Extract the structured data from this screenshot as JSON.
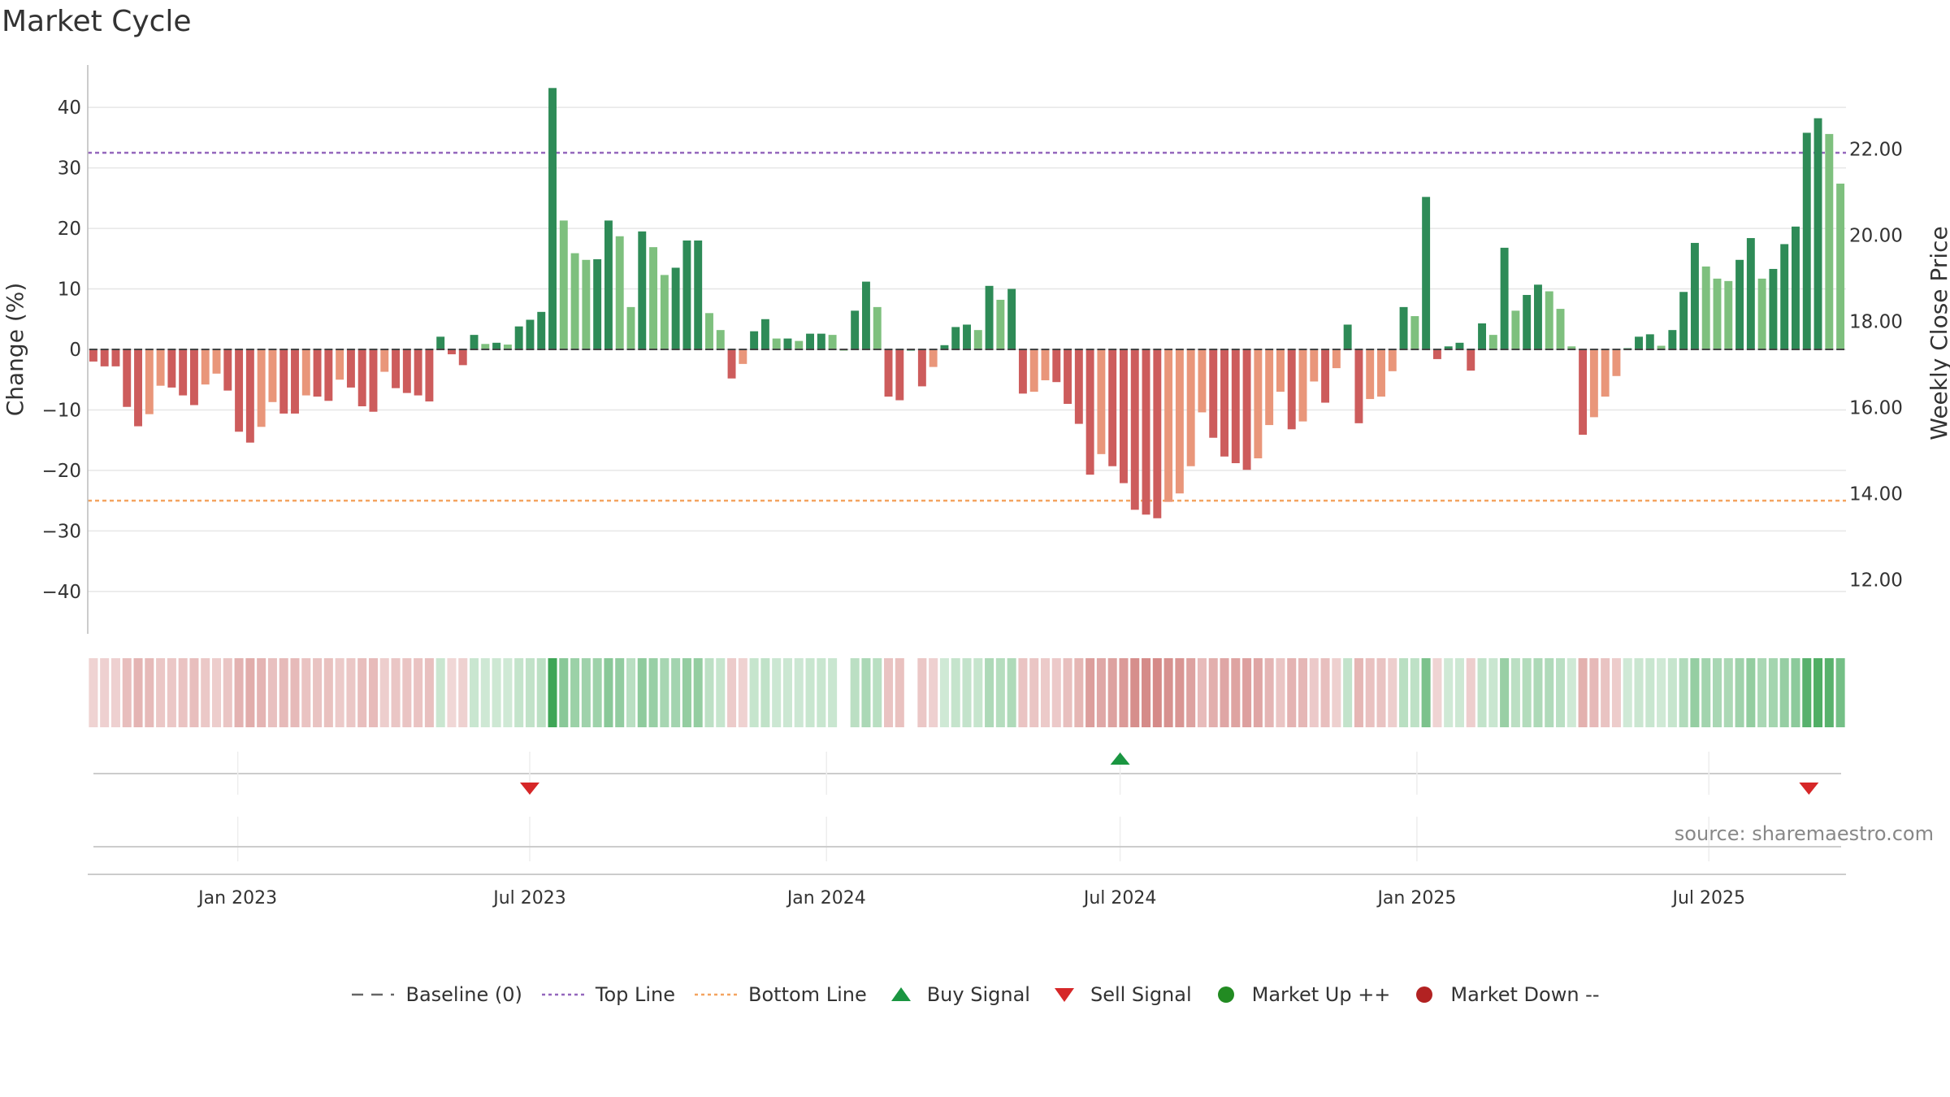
{
  "title": "Market Cycle",
  "source": "source: sharemaestro.com",
  "colors": {
    "up_strong": "#2e8b57",
    "up_light": "#7ec07e",
    "down_strong": "#cd5c5c",
    "down_light": "#e9967a",
    "top_line": "#9467bd",
    "bottom_line": "#f4a460",
    "buy": "#1a9641",
    "sell": "#d62728",
    "market_up": "#228b22",
    "market_down": "#b22222"
  },
  "legend": {
    "baseline": "Baseline (0)",
    "top_line": "Top Line",
    "bottom_line": "Bottom Line",
    "buy": "Buy Signal",
    "sell": "Sell Signal",
    "market_up": "Market Up ++",
    "market_down": "Market Down --"
  },
  "chart_data": {
    "type": "bar",
    "ylabel": "Change (%)",
    "y2label": "Weekly Close Price",
    "ylim": [
      -47,
      47
    ],
    "y2lim": [
      10.75,
      23.95
    ],
    "yticks": [
      -40,
      -30,
      -20,
      -10,
      0,
      10,
      20,
      30,
      40
    ],
    "ytick_labels": [
      "−40",
      "−30",
      "−20",
      "−10",
      "0",
      "10",
      "20",
      "30",
      "40"
    ],
    "y2ticks": [
      12,
      14,
      16,
      18,
      20,
      22
    ],
    "y2tick_labels": [
      "12.00",
      "14.00",
      "16.00",
      "18.00",
      "20.00",
      "22.00"
    ],
    "top_line": 32.5,
    "bottom_line": -25,
    "start_date": "2022-09-30",
    "end_date": "2025-09-24",
    "xticks": [
      "2023-01-01",
      "2023-07-01",
      "2024-01-01",
      "2024-07-01",
      "2025-01-01",
      "2025-07-01"
    ],
    "xtick_labels": [
      "Jan 2023",
      "Jul 2023",
      "Jan 2024",
      "Jul 2024",
      "Jan 2025",
      "Jul 2025"
    ],
    "grid": true,
    "legend_position": "bottom-center",
    "values": [
      -2,
      -2.8,
      -2.8,
      -9.5,
      -12.7,
      -10.7,
      -6,
      -6.3,
      -7.6,
      -9.2,
      -5.8,
      -4,
      -6.8,
      -13.6,
      -15.4,
      -12.8,
      -8.7,
      -10.6,
      -10.6,
      -7.6,
      -7.8,
      -8.5,
      -5,
      -6.3,
      -9.4,
      -10.3,
      -3.7,
      -6.4,
      -7.2,
      -7.6,
      -8.6,
      2.1,
      -0.8,
      -2.6,
      2.4,
      0.9,
      1.1,
      0.8,
      3.8,
      4.9,
      6.2,
      43.2,
      21.3,
      15.9,
      14.8,
      14.9,
      21.3,
      18.7,
      7,
      19.5,
      16.9,
      12.3,
      13.5,
      18,
      18,
      6,
      3.2,
      -4.8,
      -2.4,
      3,
      5,
      1.8,
      1.8,
      1.4,
      2.6,
      2.6,
      2.4,
      0,
      6.4,
      11.2,
      7,
      -7.8,
      -8.4,
      0,
      -6.1,
      -2.9,
      0.7,
      3.7,
      4.1,
      3.2,
      10.5,
      8.2,
      10,
      -7.3,
      -7,
      -5.1,
      -5.4,
      -9,
      -12.3,
      -20.7,
      -17.3,
      -19.3,
      -22.1,
      -26.5,
      -27.3,
      -27.9,
      -25.2,
      -23.8,
      -19.3,
      -10.4,
      -14.6,
      -17.7,
      -18.8,
      -19.9,
      -18,
      -12.5,
      -7,
      -13.2,
      -11.9,
      -5.3,
      -8.8,
      -3.1,
      4.1,
      -12.2,
      -8.2,
      -7.8,
      -3.6,
      7,
      5.5,
      25.2,
      -1.6,
      0.5,
      1.1,
      -3.5,
      4.3,
      2.4,
      16.8,
      6.4,
      9,
      10.7,
      9.6,
      6.7,
      0.5,
      -14.1,
      -11.2,
      -7.8,
      -4.4,
      0.2,
      2.1,
      2.5,
      0.6,
      3.2,
      9.5,
      17.6,
      13.7,
      11.7,
      11.3,
      14.8,
      18.4,
      11.7,
      13.3,
      17.4,
      20.3,
      35.8,
      38.2,
      35.6,
      27.4
    ],
    "buy_signals": [
      "2024-07-01"
    ],
    "sell_signals": [
      "2023-07-01",
      "2025-09-01"
    ],
    "heat_strip": "Weekly change intensity"
  }
}
